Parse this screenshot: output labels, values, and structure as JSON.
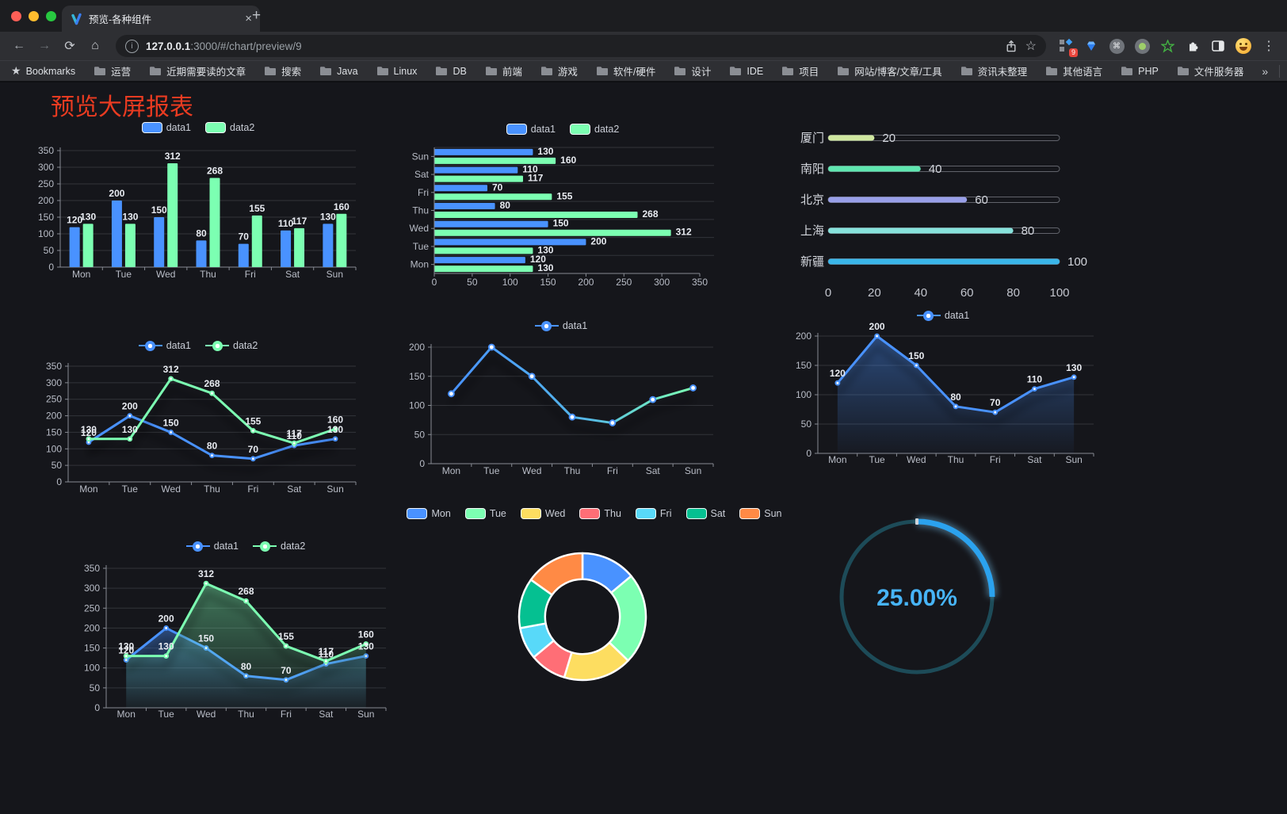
{
  "browser": {
    "tab_title": "预览-各种组件",
    "close_icon": "×",
    "new_tab_icon": "+",
    "url_host": "127.0.0.1",
    "url_path": ":3000/#/chart/preview/9",
    "bookmarks_root": "Bookmarks",
    "bookmarks": [
      "运营",
      "近期需要读的文章",
      "搜索",
      "Java",
      "Linux",
      "DB",
      "前端",
      "游戏",
      "软件/硬件",
      "设计",
      "IDE",
      "项目",
      "网站/博客/文章/工具",
      "资讯未整理",
      "其他语言",
      "PHP",
      "文件服务器"
    ],
    "overflow_chevron": "»",
    "other_bookmarks": "其他书签",
    "extension_badge": "9",
    "menu_icon": "⋮"
  },
  "page": {
    "title": "预览大屏报表"
  },
  "palette": {
    "blue": "#4992ff",
    "green": "#7cffb2",
    "yellow": "#fddd60",
    "red": "#ff6e76",
    "lightblue": "#58d9f9",
    "teal": "#05c091",
    "orange": "#ff8a45",
    "axis": "#878b93",
    "grid": "#32343a",
    "tick_text": "#b9bdc7",
    "value_text": "#e9ecf2"
  },
  "chart_data": [
    {
      "id": "bar-grouped",
      "type": "bar",
      "categories": [
        "Mon",
        "Tue",
        "Wed",
        "Thu",
        "Fri",
        "Sat",
        "Sun"
      ],
      "series": [
        {
          "name": "data1",
          "color": "#4992ff",
          "values": [
            120,
            200,
            150,
            80,
            70,
            110,
            130
          ]
        },
        {
          "name": "data2",
          "color": "#7cffb2",
          "values": [
            130,
            130,
            312,
            268,
            155,
            117,
            160
          ]
        }
      ],
      "ylim": [
        0,
        350
      ],
      "yticks": [
        0,
        50,
        100,
        150,
        200,
        250,
        300,
        350
      ],
      "legend_position": "top",
      "grid": true
    },
    {
      "id": "bar-horizontal",
      "type": "bar",
      "orientation": "horizontal",
      "categories": [
        "Mon",
        "Tue",
        "Wed",
        "Thu",
        "Fri",
        "Sat",
        "Sun"
      ],
      "series": [
        {
          "name": "data1",
          "color": "#4992ff",
          "values": [
            120,
            200,
            150,
            80,
            70,
            110,
            130
          ]
        },
        {
          "name": "data2",
          "color": "#7cffb2",
          "values": [
            130,
            130,
            312,
            268,
            155,
            117,
            160
          ]
        }
      ],
      "xlim": [
        0,
        350
      ],
      "xticks": [
        0,
        50,
        100,
        150,
        200,
        250,
        300,
        350
      ],
      "legend_position": "top",
      "grid": true
    },
    {
      "id": "city-progress",
      "type": "bar",
      "orientation": "horizontal",
      "style": "progress",
      "categories": [
        "厦门",
        "南阳",
        "北京",
        "上海",
        "新疆"
      ],
      "values": [
        20,
        40,
        60,
        80,
        100
      ],
      "colors": [
        "#cfe7a0",
        "#5fe6b0",
        "#989fe8",
        "#87e2dc",
        "#3ab6ea"
      ],
      "xlim": [
        0,
        100
      ],
      "xticks": [
        0,
        20,
        40,
        60,
        80,
        100
      ],
      "grid": false
    },
    {
      "id": "line-grouped",
      "type": "line",
      "categories": [
        "Mon",
        "Tue",
        "Wed",
        "Thu",
        "Fri",
        "Sat",
        "Sun"
      ],
      "series": [
        {
          "name": "data1",
          "color": "#4992ff",
          "values": [
            120,
            200,
            150,
            80,
            70,
            110,
            130
          ]
        },
        {
          "name": "data2",
          "color": "#7cffb2",
          "values": [
            130,
            130,
            312,
            268,
            155,
            117,
            160
          ]
        }
      ],
      "ylim": [
        0,
        350
      ],
      "yticks": [
        0,
        50,
        100,
        150,
        200,
        250,
        300,
        350
      ],
      "labels": true,
      "legend_position": "top"
    },
    {
      "id": "line-gradient",
      "type": "line",
      "categories": [
        "Mon",
        "Tue",
        "Wed",
        "Thu",
        "Fri",
        "Sat",
        "Sun"
      ],
      "series": [
        {
          "name": "data1",
          "color": "#4992ff",
          "color_end": "#7cffb2",
          "values": [
            120,
            200,
            150,
            80,
            70,
            110,
            130
          ]
        }
      ],
      "ylim": [
        0,
        200
      ],
      "yticks": [
        0,
        50,
        100,
        150,
        200
      ],
      "labels": false,
      "legend_position": "top"
    },
    {
      "id": "area-single",
      "type": "area",
      "categories": [
        "Mon",
        "Tue",
        "Wed",
        "Thu",
        "Fri",
        "Sat",
        "Sun"
      ],
      "series": [
        {
          "name": "data1",
          "color": "#4992ff",
          "values": [
            120,
            200,
            150,
            80,
            70,
            110,
            130
          ]
        }
      ],
      "ylim": [
        0,
        200
      ],
      "yticks": [
        0,
        50,
        100,
        150,
        200
      ],
      "labels": true,
      "legend_position": "top"
    },
    {
      "id": "area-grouped",
      "type": "area",
      "categories": [
        "Mon",
        "Tue",
        "Wed",
        "Thu",
        "Fri",
        "Sat",
        "Sun"
      ],
      "series": [
        {
          "name": "data1",
          "color": "#4992ff",
          "values": [
            120,
            200,
            150,
            80,
            70,
            110,
            130
          ]
        },
        {
          "name": "data2",
          "color": "#7cffb2",
          "values": [
            130,
            130,
            312,
            268,
            155,
            117,
            160
          ]
        }
      ],
      "ylim": [
        0,
        350
      ],
      "yticks": [
        0,
        50,
        100,
        150,
        200,
        250,
        300,
        350
      ],
      "labels": true,
      "legend_position": "top"
    },
    {
      "id": "donut",
      "type": "pie",
      "categories": [
        "Mon",
        "Tue",
        "Wed",
        "Thu",
        "Fri",
        "Sat",
        "Sun"
      ],
      "values": [
        120,
        200,
        150,
        80,
        70,
        110,
        130
      ],
      "colors": [
        "#4992ff",
        "#7cffb2",
        "#fddd60",
        "#ff6e76",
        "#58d9f9",
        "#05c091",
        "#ff8a45"
      ],
      "inner_radius_ratio": 0.59,
      "legend_position": "top"
    },
    {
      "id": "gauge",
      "type": "gauge",
      "value": 25,
      "max": 100,
      "label": "25.00%",
      "color": "#2ba2ee",
      "text_color": "#47b4f7",
      "track_color": "#1d4b58"
    }
  ]
}
